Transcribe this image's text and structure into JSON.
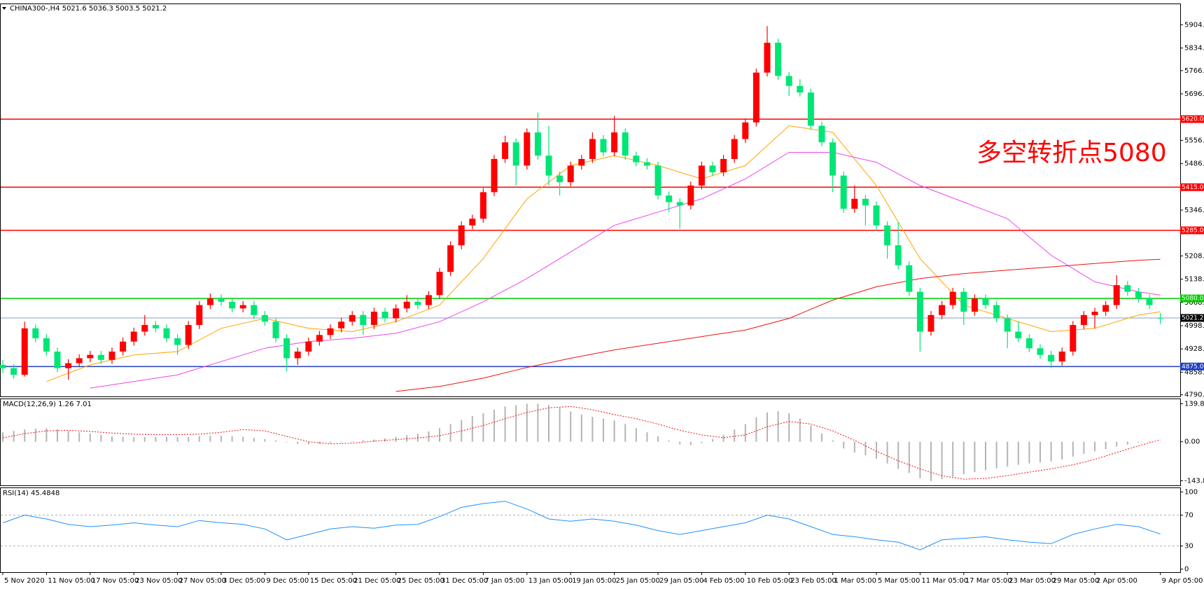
{
  "chart_data": [
    {
      "type": "candlestick",
      "title": "CHINA300-,H4  5021.6 5036.3 5003.5 5021.2",
      "annotation": "多空转折点5080",
      "annotation_color": "#ff0000",
      "up_color": "#ff0000",
      "down_color": "#00e676",
      "categories": [
        "5 Nov 2020",
        null,
        null,
        null,
        "11 Nov 05:00",
        null,
        null,
        null,
        "17 Nov 05:00",
        null,
        null,
        null,
        "23 Nov 05:00",
        null,
        null,
        null,
        "27 Nov 05:00",
        null,
        null,
        null,
        "3 Dec 05:00",
        null,
        null,
        null,
        "9 Dec 05:00",
        null,
        null,
        null,
        "15 Dec 05:00",
        null,
        null,
        null,
        "21 Dec 05:00",
        null,
        null,
        null,
        "25 Dec 05:00",
        null,
        null,
        null,
        "31 Dec 05:00",
        null,
        null,
        null,
        "7 Jan 05:00",
        null,
        null,
        null,
        "13 Jan 05:00",
        null,
        null,
        null,
        "19 Jan 05:00",
        null,
        null,
        null,
        "25 Jan 05:00",
        null,
        null,
        null,
        "29 Jan 05:00",
        null,
        null,
        null,
        "4 Feb 05:00",
        null,
        null,
        null,
        "10 Feb 05:00",
        null,
        null,
        null,
        "23 Feb 05:00",
        null,
        null,
        null,
        "1 Mar 05:00",
        null,
        null,
        null,
        "5 Mar 05:00",
        null,
        null,
        null,
        "11 Mar 05:00",
        null,
        null,
        null,
        "17 Mar 05:00",
        null,
        null,
        null,
        "23 Mar 05:00",
        null,
        null,
        null,
        "29 Mar 05:00",
        null,
        null,
        null,
        "2 Apr 05:00",
        null,
        null,
        null,
        null,
        null,
        "9 Apr 05:00"
      ],
      "open": [
        4880,
        4870,
        4850,
        4990,
        4960,
        4920,
        4870,
        4885,
        4900,
        4910,
        4895,
        4920,
        4950,
        4980,
        5000,
        4990,
        4960,
        4940,
        5000,
        5060,
        5080,
        5070,
        5050,
        5060,
        5030,
        5010,
        4960,
        4900,
        4920,
        4950,
        4970,
        4990,
        5010,
        5030,
        5000,
        5040,
        5020,
        5050,
        5070,
        5060,
        5090,
        5160,
        5240,
        5300,
        5320,
        5400,
        5500,
        5550,
        5480,
        5580,
        5510,
        5450,
        5430,
        5480,
        5500,
        5560,
        5520,
        5580,
        5510,
        5490,
        5480,
        5390,
        5370,
        5360,
        5420,
        5480,
        5460,
        5500,
        5560,
        5610,
        5760,
        5850,
        5750,
        5720,
        5700,
        5600,
        5550,
        5450,
        5350,
        5380,
        5360,
        5300,
        5240,
        5180,
        5100,
        4980,
        5030,
        5060,
        5100,
        5040,
        5080,
        5060,
        5020,
        4980,
        4960,
        4930,
        4910,
        4890,
        4920,
        5000,
        5030,
        5040,
        5060,
        5120,
        5100,
        5080,
        5021.6
      ],
      "high": [
        4895,
        4882,
        5010,
        5002,
        4972,
        4932,
        4897,
        4912,
        4922,
        4922,
        4932,
        4962,
        4992,
        5030,
        5012,
        5002,
        4972,
        5012,
        5072,
        5095,
        5092,
        5082,
        5072,
        5072,
        5042,
        5022,
        4972,
        4932,
        4962,
        4982,
        5002,
        5022,
        5042,
        5042,
        5052,
        5052,
        5062,
        5090,
        5082,
        5102,
        5172,
        5252,
        5312,
        5332,
        5412,
        5512,
        5570,
        5562,
        5592,
        5640,
        5600,
        5462,
        5492,
        5512,
        5580,
        5572,
        5630,
        5592,
        5522,
        5502,
        5492,
        5402,
        5382,
        5432,
        5492,
        5492,
        5512,
        5572,
        5622,
        5772,
        5900,
        5862,
        5762,
        5740,
        5712,
        5612,
        5562,
        5462,
        5420,
        5392,
        5372,
        5312,
        5310,
        5192,
        5112,
        5042,
        5072,
        5112,
        5112,
        5092,
        5092,
        5072,
        5032,
        5010,
        4972,
        4942,
        4922,
        4932,
        5012,
        5042,
        5052,
        5072,
        5150,
        5132,
        5112,
        5092,
        5036.3
      ],
      "low": [
        4855,
        4838,
        4845,
        4948,
        4908,
        4858,
        4835,
        4873,
        4888,
        4883,
        4883,
        4908,
        4938,
        4968,
        4978,
        4948,
        4910,
        4928,
        4988,
        5048,
        5058,
        5038,
        5038,
        5018,
        4998,
        4948,
        4860,
        4880,
        4908,
        4938,
        4958,
        4978,
        4998,
        4970,
        4988,
        5008,
        5008,
        5038,
        5048,
        5048,
        5078,
        5148,
        5228,
        5288,
        5308,
        5388,
        5488,
        5420,
        5468,
        5498,
        5420,
        5390,
        5418,
        5468,
        5488,
        5508,
        5508,
        5498,
        5478,
        5468,
        5378,
        5340,
        5290,
        5348,
        5408,
        5448,
        5448,
        5488,
        5548,
        5598,
        5748,
        5738,
        5690,
        5688,
        5588,
        5538,
        5400,
        5338,
        5338,
        5300,
        5288,
        5200,
        5168,
        5088,
        4920,
        4968,
        5018,
        5048,
        5000,
        5028,
        5048,
        5008,
        4930,
        4948,
        4918,
        4898,
        4870,
        4878,
        4908,
        4988,
        4990,
        5028,
        5048,
        5088,
        5068,
        5048,
        5003.5
      ],
      "close": [
        4870,
        4850,
        4990,
        4960,
        4920,
        4870,
        4885,
        4900,
        4910,
        4895,
        4920,
        4950,
        4980,
        5000,
        4990,
        4960,
        4940,
        5000,
        5060,
        5080,
        5070,
        5050,
        5060,
        5030,
        5010,
        4960,
        4900,
        4920,
        4950,
        4970,
        4990,
        5010,
        5030,
        5000,
        5040,
        5020,
        5050,
        5070,
        5060,
        5090,
        5160,
        5240,
        5300,
        5320,
        5400,
        5500,
        5550,
        5480,
        5580,
        5510,
        5450,
        5430,
        5480,
        5500,
        5560,
        5520,
        5580,
        5510,
        5490,
        5480,
        5390,
        5370,
        5360,
        5420,
        5480,
        5460,
        5500,
        5560,
        5610,
        5760,
        5850,
        5750,
        5720,
        5700,
        5600,
        5550,
        5450,
        5350,
        5380,
        5360,
        5300,
        5240,
        5180,
        5100,
        4980,
        5030,
        5060,
        5100,
        5040,
        5080,
        5060,
        5020,
        4980,
        4960,
        4930,
        4910,
        4890,
        4920,
        5000,
        5030,
        5040,
        5060,
        5120,
        5100,
        5080,
        5060,
        5021.2
      ],
      "ylim": [
        4785,
        5966
      ],
      "yticks": [
        {
          "value": 5904,
          "label": "5904.0"
        },
        {
          "value": 5834,
          "label": "5834.0"
        },
        {
          "value": 5766,
          "label": "5766.0"
        },
        {
          "value": 5696,
          "label": "5696.0"
        },
        {
          "value": 5556,
          "label": "5556.0"
        },
        {
          "value": 5486,
          "label": "5486.0"
        },
        {
          "value": 5346,
          "label": "5346.0"
        },
        {
          "value": 5208,
          "label": "5208.0"
        },
        {
          "value": 5138,
          "label": "5138.0"
        },
        {
          "value": 5068,
          "label": "5068.0"
        },
        {
          "value": 4998,
          "label": "4998.0"
        },
        {
          "value": 4928,
          "label": "4928.0"
        },
        {
          "value": 4858,
          "label": "4858.0"
        },
        {
          "value": 4790,
          "label": "4790.0"
        }
      ],
      "overlays": [
        {
          "color": "#ffa500",
          "x": [
            0,
            4,
            8,
            12,
            16,
            20,
            24,
            28,
            32,
            36,
            40,
            44,
            48,
            52,
            56,
            60,
            64,
            68,
            72,
            76,
            80,
            84,
            88,
            92,
            96,
            100,
            104,
            106
          ],
          "values": [
            null,
            4830,
            4880,
            4910,
            4920,
            4990,
            5020,
            4990,
            4980,
            5010,
            5060,
            5200,
            5380,
            5480,
            5510,
            5480,
            5440,
            5480,
            5600,
            5580,
            5420,
            5200,
            5060,
            5020,
            4980,
            4990,
            5030,
            5040
          ]
        },
        {
          "color": "#ee44ee",
          "x": [
            0,
            4,
            8,
            12,
            16,
            20,
            24,
            28,
            32,
            36,
            40,
            44,
            48,
            52,
            56,
            60,
            64,
            68,
            72,
            76,
            80,
            84,
            88,
            92,
            96,
            100,
            104,
            106
          ],
          "values": [
            null,
            null,
            4810,
            4830,
            4850,
            4890,
            4930,
            4950,
            4960,
            4975,
            5010,
            5070,
            5140,
            5220,
            5300,
            5340,
            5380,
            5440,
            5520,
            5520,
            5490,
            5420,
            5370,
            5320,
            5210,
            5130,
            5100,
            5090
          ]
        },
        {
          "color": "#ee1111",
          "x": [
            0,
            4,
            8,
            12,
            16,
            20,
            24,
            28,
            32,
            36,
            40,
            44,
            48,
            52,
            56,
            60,
            64,
            68,
            72,
            76,
            80,
            84,
            88,
            92,
            96,
            100,
            104,
            106
          ],
          "values": [
            null,
            null,
            null,
            null,
            null,
            null,
            null,
            null,
            null,
            4800,
            4815,
            4840,
            4872,
            4900,
            4925,
            4945,
            4965,
            4985,
            5020,
            5075,
            5115,
            5140,
            5155,
            5165,
            5175,
            5185,
            5195,
            5198
          ]
        }
      ],
      "levels": [
        {
          "value": 5620,
          "label": "5620.0",
          "color": "#ff0000",
          "tag_color": "#ff0000"
        },
        {
          "value": 5415,
          "label": "5415.0",
          "color": "#ff0000",
          "tag_color": "#ff0000"
        },
        {
          "value": 5285,
          "label": "5285.0",
          "color": "#ff0000",
          "tag_color": "#ff0000"
        },
        {
          "value": 5080,
          "label": "5080.0",
          "color": "#00cc00",
          "tag_color": "#00cc00"
        },
        {
          "value": 5021.2,
          "label": "5021.2",
          "color": "#7f9fc0",
          "tag_color": "#000000"
        },
        {
          "value": 4875,
          "label": "4875.0",
          "color": "#1f3fbf",
          "tag_color": "#1f3fbf"
        }
      ]
    },
    {
      "type": "macd",
      "title": "MACD(12,26,9) 1.26 7.01",
      "histogram": {
        "color": "#b4b4b4",
        "values": [
          35,
          40,
          45,
          48,
          50,
          45,
          40,
          35,
          30,
          25,
          20,
          18,
          17,
          17,
          18,
          18,
          17,
          18,
          20,
          22,
          22,
          20,
          18,
          14,
          10,
          5,
          -2,
          -8,
          -10,
          -8,
          -5,
          -2,
          2,
          5,
          8,
          12,
          18,
          24,
          30,
          38,
          50,
          65,
          80,
          95,
          105,
          118,
          130,
          135,
          140,
          140,
          135,
          125,
          112,
          100,
          92,
          85,
          78,
          65,
          50,
          35,
          20,
          5,
          -10,
          -12,
          -5,
          10,
          25,
          45,
          65,
          90,
          108,
          112,
          105,
          85,
          60,
          30,
          5,
          -25,
          -40,
          -50,
          -62,
          -80,
          -100,
          -115,
          -135,
          -145,
          -138,
          -128,
          -120,
          -112,
          -105,
          -98,
          -92,
          -85,
          -80,
          -76,
          -72,
          -65,
          -55,
          -45,
          -35,
          -28,
          -18,
          -10,
          -3,
          2,
          1.26
        ]
      },
      "signal": {
        "color": "#ee1111",
        "x": [
          0,
          2,
          4,
          6,
          8,
          10,
          12,
          14,
          16,
          18,
          20,
          22,
          24,
          26,
          28,
          30,
          32,
          34,
          36,
          38,
          40,
          42,
          44,
          46,
          48,
          50,
          52,
          54,
          56,
          58,
          60,
          62,
          64,
          66,
          68,
          70,
          72,
          74,
          76,
          78,
          80,
          82,
          84,
          86,
          88,
          90,
          92,
          94,
          96,
          98,
          100,
          102,
          104,
          106
        ],
        "values": [
          14,
          30,
          40,
          42,
          38,
          32,
          28,
          26,
          26,
          28,
          35,
          45,
          40,
          20,
          0,
          -8,
          -5,
          2,
          8,
          14,
          22,
          40,
          60,
          85,
          108,
          125,
          130,
          118,
          100,
          85,
          65,
          42,
          25,
          15,
          25,
          55,
          75,
          65,
          40,
          5,
          -35,
          -70,
          -100,
          -125,
          -138,
          -135,
          -125,
          -112,
          -100,
          -85,
          -65,
          -40,
          -15,
          7.01
        ]
      },
      "ylim": [
        -160.7,
        156.7
      ],
      "yticks": [
        139.86,
        {
          "value": 0,
          "label": "0.00"
        },
        -143.82
      ]
    },
    {
      "type": "rsi",
      "title": "RSI(14) 45.4848",
      "series": [
        {
          "color": "#1e90ff",
          "x": [
            0,
            2,
            4,
            6,
            8,
            10,
            12,
            14,
            16,
            18,
            20,
            22,
            24,
            26,
            28,
            30,
            32,
            34,
            36,
            38,
            40,
            42,
            44,
            46,
            48,
            50,
            52,
            54,
            56,
            58,
            60,
            62,
            64,
            66,
            68,
            70,
            72,
            74,
            76,
            78,
            80,
            82,
            84,
            86,
            88,
            90,
            92,
            94,
            96,
            98,
            100,
            102,
            104,
            106
          ],
          "values": [
            60,
            70,
            65,
            58,
            55,
            57,
            60,
            57,
            55,
            63,
            60,
            58,
            52,
            38,
            45,
            52,
            55,
            53,
            57,
            58,
            68,
            80,
            85,
            88,
            78,
            65,
            62,
            65,
            62,
            57,
            50,
            45,
            50,
            55,
            60,
            70,
            65,
            55,
            45,
            42,
            38,
            35,
            25,
            38,
            40,
            42,
            38,
            35,
            33,
            45,
            52,
            58,
            55,
            45.4848
          ]
        }
      ],
      "levels": [
        70,
        30
      ],
      "level_color": "#b0b0b0",
      "ylim": [
        -4,
        105
      ],
      "yticks": [
        100,
        70,
        30,
        0
      ]
    }
  ]
}
